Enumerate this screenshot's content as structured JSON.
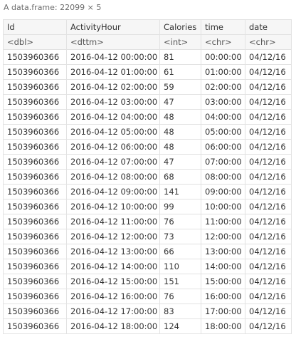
{
  "caption": "A data.frame: 22099 × 5",
  "columns": [
    {
      "name": "Id",
      "type": "<dbl>"
    },
    {
      "name": "ActivityHour",
      "type": "<dttm>"
    },
    {
      "name": "Calories",
      "type": "<int>"
    },
    {
      "name": "time",
      "type": "<chr>"
    },
    {
      "name": "date",
      "type": "<chr>"
    }
  ],
  "rows": [
    [
      "1503960366",
      "2016-04-12 00:00:00",
      "81",
      "00:00:00",
      "04/12/16"
    ],
    [
      "1503960366",
      "2016-04-12 01:00:00",
      "61",
      "01:00:00",
      "04/12/16"
    ],
    [
      "1503960366",
      "2016-04-12 02:00:00",
      "59",
      "02:00:00",
      "04/12/16"
    ],
    [
      "1503960366",
      "2016-04-12 03:00:00",
      "47",
      "03:00:00",
      "04/12/16"
    ],
    [
      "1503960366",
      "2016-04-12 04:00:00",
      "48",
      "04:00:00",
      "04/12/16"
    ],
    [
      "1503960366",
      "2016-04-12 05:00:00",
      "48",
      "05:00:00",
      "04/12/16"
    ],
    [
      "1503960366",
      "2016-04-12 06:00:00",
      "48",
      "06:00:00",
      "04/12/16"
    ],
    [
      "1503960366",
      "2016-04-12 07:00:00",
      "47",
      "07:00:00",
      "04/12/16"
    ],
    [
      "1503960366",
      "2016-04-12 08:00:00",
      "68",
      "08:00:00",
      "04/12/16"
    ],
    [
      "1503960366",
      "2016-04-12 09:00:00",
      "141",
      "09:00:00",
      "04/12/16"
    ],
    [
      "1503960366",
      "2016-04-12 10:00:00",
      "99",
      "10:00:00",
      "04/12/16"
    ],
    [
      "1503960366",
      "2016-04-12 11:00:00",
      "76",
      "11:00:00",
      "04/12/16"
    ],
    [
      "1503960366",
      "2016-04-12 12:00:00",
      "73",
      "12:00:00",
      "04/12/16"
    ],
    [
      "1503960366",
      "2016-04-12 13:00:00",
      "66",
      "13:00:00",
      "04/12/16"
    ],
    [
      "1503960366",
      "2016-04-12 14:00:00",
      "110",
      "14:00:00",
      "04/12/16"
    ],
    [
      "1503960366",
      "2016-04-12 15:00:00",
      "151",
      "15:00:00",
      "04/12/16"
    ],
    [
      "1503960366",
      "2016-04-12 16:00:00",
      "76",
      "16:00:00",
      "04/12/16"
    ],
    [
      "1503960366",
      "2016-04-12 17:00:00",
      "83",
      "17:00:00",
      "04/12/16"
    ],
    [
      "1503960366",
      "2016-04-12 18:00:00",
      "124",
      "18:00:00",
      "04/12/16"
    ]
  ]
}
